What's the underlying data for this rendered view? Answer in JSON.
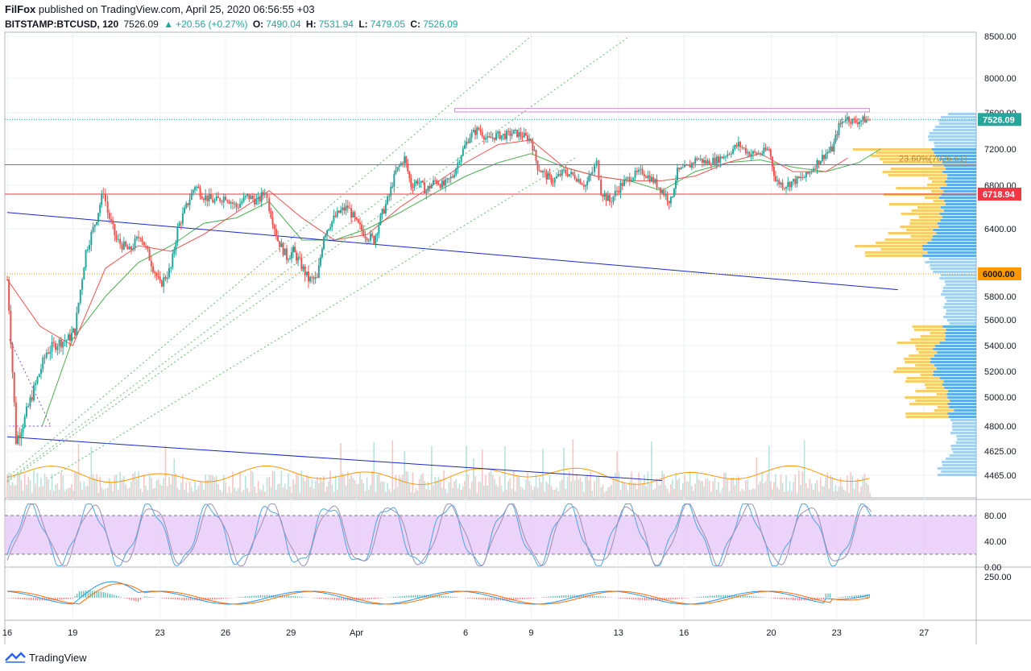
{
  "header": {
    "author": "FilFox",
    "published_text": "published on TradingView.com, April 25, 2020 06:56:55 +03",
    "symbol": "BITSTAMP:BTCUSD, 120",
    "last": "7526.09",
    "change": "+20.56 (+0.27%)",
    "o_label": "O:",
    "o_val": "7490.04",
    "h_label": "H:",
    "h_val": "7531.94",
    "l_label": "L:",
    "l_val": "7479.05",
    "c_label": "C:",
    "c_val": "7526.09"
  },
  "footer": {
    "brand": "TradingView"
  },
  "colors": {
    "up": "#26a69a",
    "down": "#ef5350",
    "ma_green": "#4caf50",
    "ma_red": "#ef5350",
    "trend_blue": "#1a27c9",
    "channel_green": "#66bb6a",
    "stoch_band": "#e6c8f7",
    "macd_blue": "#2196f3",
    "macd_orange": "#ff6d00",
    "vol_orange": "#ff9800",
    "vp_blue": "#4fa6e0",
    "vp_yellow": "#f6c453"
  },
  "chart_data": {
    "type": "candlestick",
    "price_axis": {
      "ticks": [
        "8500.00",
        "8000.00",
        "7600.00",
        "7200.00",
        "6800.00",
        "6400.00",
        "5800.00",
        "5600.00",
        "5400.00",
        "5200.00",
        "5000.00",
        "4800.00",
        "4625.00",
        "4465.00"
      ],
      "tick_values": [
        8500,
        8000,
        7600,
        7200,
        6800,
        6400,
        5800,
        5600,
        5400,
        5200,
        5000,
        4800,
        4625,
        4465
      ]
    },
    "date_axis": {
      "labels": [
        "16",
        "19",
        "23",
        "26",
        "29",
        "Apr",
        "6",
        "9",
        "13",
        "16",
        "20",
        "23",
        "27"
      ],
      "label_days": [
        16,
        19,
        23,
        26,
        29,
        32,
        37,
        40,
        44,
        47,
        51,
        54,
        58
      ]
    },
    "price_tags": [
      {
        "label": "7526.09",
        "value": 7526.09,
        "color": "#26a69a"
      },
      {
        "label": "6718.94",
        "value": 6718.94,
        "color": "#f23645"
      },
      {
        "label": "6000.00",
        "value": 6000.0,
        "color": "#ff9800"
      }
    ],
    "fib_label": "23.60%(7026.61)",
    "fib_value": 7026.61,
    "key_points": [
      [
        16.0,
        5950
      ],
      [
        16.4,
        4700
      ],
      [
        16.8,
        4850
      ],
      [
        17.3,
        5100
      ],
      [
        17.8,
        5350
      ],
      [
        18.3,
        5420
      ],
      [
        18.8,
        5450
      ],
      [
        19.1,
        5520
      ],
      [
        19.6,
        6200
      ],
      [
        20.1,
        6500
      ],
      [
        20.4,
        6750
      ],
      [
        20.6,
        6550
      ],
      [
        21.0,
        6300
      ],
      [
        21.6,
        6200
      ],
      [
        22.1,
        6350
      ],
      [
        22.6,
        6100
      ],
      [
        23.0,
        5900
      ],
      [
        23.5,
        6050
      ],
      [
        23.8,
        6400
      ],
      [
        24.2,
        6600
      ],
      [
        24.6,
        6800
      ],
      [
        25.0,
        6700
      ],
      [
        25.5,
        6650
      ],
      [
        26.0,
        6700
      ],
      [
        26.5,
        6600
      ],
      [
        27.0,
        6700
      ],
      [
        27.5,
        6650
      ],
      [
        27.8,
        6750
      ],
      [
        28.0,
        6600
      ],
      [
        28.4,
        6300
      ],
      [
        28.8,
        6150
      ],
      [
        29.1,
        6200
      ],
      [
        29.4,
        6100
      ],
      [
        29.8,
        5950
      ],
      [
        30.2,
        5950
      ],
      [
        30.5,
        6350
      ],
      [
        30.8,
        6450
      ],
      [
        31.2,
        6550
      ],
      [
        31.6,
        6600
      ],
      [
        32.0,
        6450
      ],
      [
        32.4,
        6350
      ],
      [
        32.8,
        6300
      ],
      [
        33.1,
        6500
      ],
      [
        33.5,
        6700
      ],
      [
        33.8,
        6950
      ],
      [
        34.2,
        7100
      ],
      [
        34.5,
        6800
      ],
      [
        34.8,
        6850
      ],
      [
        35.2,
        6750
      ],
      [
        35.6,
        6850
      ],
      [
        36.0,
        6800
      ],
      [
        36.4,
        6900
      ],
      [
        36.8,
        7150
      ],
      [
        37.2,
        7350
      ],
      [
        37.6,
        7420
      ],
      [
        38.0,
        7300
      ],
      [
        38.4,
        7350
      ],
      [
        38.8,
        7350
      ],
      [
        39.2,
        7380
      ],
      [
        39.6,
        7350
      ],
      [
        40.0,
        7300
      ],
      [
        40.3,
        7000
      ],
      [
        40.7,
        6900
      ],
      [
        41.0,
        6850
      ],
      [
        41.5,
        6950
      ],
      [
        42.0,
        6900
      ],
      [
        42.5,
        6800
      ],
      [
        42.8,
        6950
      ],
      [
        43.0,
        7050
      ],
      [
        43.2,
        6750
      ],
      [
        43.6,
        6650
      ],
      [
        44.1,
        6800
      ],
      [
        44.6,
        6900
      ],
      [
        45.1,
        6950
      ],
      [
        45.6,
        6850
      ],
      [
        46.0,
        6750
      ],
      [
        46.4,
        6650
      ],
      [
        46.7,
        6950
      ],
      [
        47.2,
        7000
      ],
      [
        47.6,
        7100
      ],
      [
        48.0,
        7050
      ],
      [
        48.5,
        7080
      ],
      [
        49.0,
        7150
      ],
      [
        49.5,
        7250
      ],
      [
        50.0,
        7150
      ],
      [
        50.5,
        7150
      ],
      [
        50.9,
        7200
      ],
      [
        51.2,
        6850
      ],
      [
        51.6,
        6800
      ],
      [
        52.1,
        6850
      ],
      [
        52.6,
        6900
      ],
      [
        53.1,
        7050
      ],
      [
        53.5,
        7150
      ],
      [
        53.8,
        7200
      ],
      [
        54.1,
        7450
      ],
      [
        54.4,
        7550
      ],
      [
        54.8,
        7500
      ],
      [
        55.2,
        7520
      ],
      [
        55.6,
        7526
      ]
    ],
    "ma_green_points": [
      [
        17.6,
        4800
      ],
      [
        19.0,
        5450
      ],
      [
        20.5,
        5800
      ],
      [
        22.0,
        6100
      ],
      [
        23.5,
        6250
      ],
      [
        25.0,
        6450
      ],
      [
        26.5,
        6500
      ],
      [
        28.0,
        6650
      ],
      [
        29.5,
        6300
      ],
      [
        31.0,
        6300
      ],
      [
        32.5,
        6400
      ],
      [
        34.0,
        6550
      ],
      [
        35.5,
        6720
      ],
      [
        37.0,
        6900
      ],
      [
        38.5,
        7050
      ],
      [
        40.0,
        7150
      ],
      [
        41.5,
        7000
      ],
      [
        43.0,
        6900
      ],
      [
        44.5,
        6850
      ],
      [
        46.0,
        6750
      ],
      [
        47.5,
        6950
      ],
      [
        49.0,
        7050
      ],
      [
        50.5,
        7080
      ],
      [
        52.0,
        7000
      ],
      [
        53.5,
        6950
      ],
      [
        55.0,
        7050
      ],
      [
        56.0,
        7200
      ]
    ],
    "ma_red_points": [
      [
        16.0,
        5950
      ],
      [
        17.5,
        5550
      ],
      [
        19.0,
        5400
      ],
      [
        20.5,
        6050
      ],
      [
        22.0,
        6250
      ],
      [
        23.5,
        6200
      ],
      [
        25.0,
        6350
      ],
      [
        26.5,
        6550
      ],
      [
        28.0,
        6750
      ],
      [
        29.5,
        6500
      ],
      [
        31.0,
        6300
      ],
      [
        32.5,
        6350
      ],
      [
        34.0,
        6600
      ],
      [
        35.5,
        6800
      ],
      [
        37.0,
        7050
      ],
      [
        38.5,
        7250
      ],
      [
        40.0,
        7300
      ],
      [
        41.5,
        7000
      ],
      [
        43.0,
        6900
      ],
      [
        44.5,
        6850
      ],
      [
        46.0,
        6850
      ],
      [
        47.5,
        6900
      ],
      [
        49.0,
        7050
      ],
      [
        50.5,
        7150
      ],
      [
        52.0,
        6950
      ],
      [
        53.5,
        6950
      ],
      [
        54.5,
        7100
      ]
    ],
    "trendlines": [
      {
        "kind": "blue",
        "from": [
          16.0,
          6550
        ],
        "to": [
          56.8,
          5860
        ]
      },
      {
        "kind": "blue",
        "from": [
          16.0,
          4725
        ],
        "to": [
          46.0,
          4430
        ]
      },
      {
        "kind": "green-dotted",
        "from": [
          16.0,
          4450
        ],
        "to": [
          40.0,
          8500
        ]
      },
      {
        "kind": "green-dotted",
        "from": [
          16.0,
          4430
        ],
        "to": [
          34.0,
          6800
        ]
      },
      {
        "kind": "green-dotted",
        "from": [
          16.0,
          4420
        ],
        "to": [
          44.5,
          8500
        ]
      },
      {
        "kind": "green-dotted",
        "from": [
          18.0,
          4450
        ],
        "to": [
          42.0,
          7100
        ]
      }
    ],
    "range_box": {
      "from_day": 36.5,
      "to_day": 55.5,
      "top": 7650,
      "bottom": 7610
    },
    "stoch_axis": {
      "ticks": [
        "80.00",
        "40.00",
        "0.00"
      ],
      "values": [
        80,
        40,
        0
      ],
      "band": [
        20,
        80
      ]
    },
    "macd_axis": {
      "ticks": [
        "250.00"
      ],
      "values": [
        250
      ]
    }
  }
}
